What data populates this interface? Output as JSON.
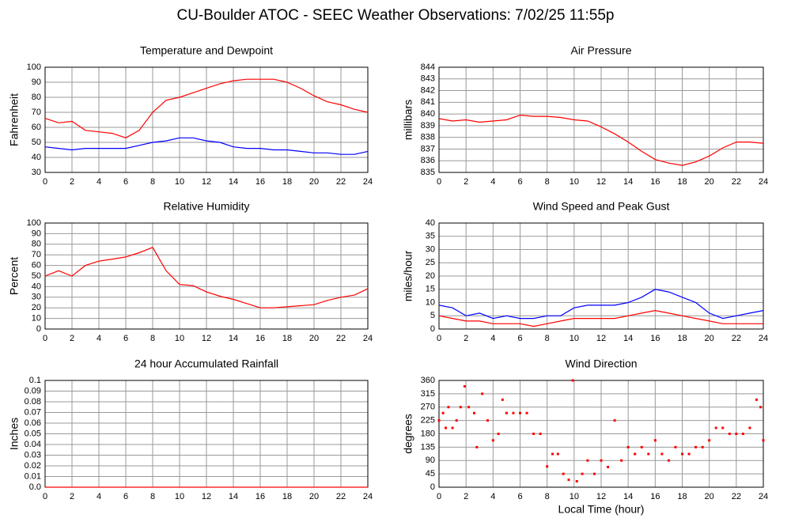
{
  "title": "CU-Boulder ATOC - SEEC Weather Observations: 7/02/25 11:55p",
  "chart_data": [
    {
      "type": "line",
      "title": "Temperature and Dewpoint",
      "ylabel": "Fahrenheit",
      "x": [
        0,
        1,
        2,
        3,
        4,
        5,
        6,
        7,
        8,
        9,
        10,
        11,
        12,
        13,
        14,
        15,
        16,
        17,
        18,
        19,
        20,
        21,
        22,
        23,
        24
      ],
      "series": [
        {
          "color": "#ff0000",
          "values": [
            66,
            63,
            64,
            58,
            57,
            56,
            53,
            58,
            70,
            78,
            80,
            83,
            86,
            89,
            91,
            92,
            92,
            92,
            90,
            86,
            81,
            77,
            75,
            72,
            70
          ]
        },
        {
          "color": "#0000ff",
          "values": [
            47,
            46,
            45,
            46,
            46,
            46,
            46,
            48,
            50,
            51,
            53,
            53,
            51,
            50,
            47,
            46,
            46,
            45,
            45,
            44,
            43,
            43,
            42,
            42,
            44
          ]
        }
      ],
      "xlim": [
        0,
        24
      ],
      "xticks": [
        0,
        2,
        4,
        6,
        8,
        10,
        12,
        14,
        16,
        18,
        20,
        22,
        24
      ],
      "ylim": [
        30,
        100
      ],
      "yticks": [
        30,
        40,
        50,
        60,
        70,
        80,
        90,
        100
      ],
      "grid": true
    },
    {
      "type": "line",
      "title": "Air Pressure",
      "ylabel": "millibars",
      "x": [
        0,
        1,
        2,
        3,
        4,
        5,
        6,
        7,
        8,
        9,
        10,
        11,
        12,
        13,
        14,
        15,
        16,
        17,
        18,
        19,
        20,
        21,
        22,
        23,
        24
      ],
      "series": [
        {
          "color": "#ff0000",
          "values": [
            839.6,
            839.4,
            839.5,
            839.3,
            839.4,
            839.5,
            839.9,
            839.8,
            839.8,
            839.7,
            839.5,
            839.4,
            838.9,
            838.3,
            837.6,
            836.8,
            836.1,
            835.8,
            835.6,
            835.9,
            836.4,
            837.1,
            837.6,
            837.6,
            837.5
          ]
        }
      ],
      "xlim": [
        0,
        24
      ],
      "xticks": [
        0,
        2,
        4,
        6,
        8,
        10,
        12,
        14,
        16,
        18,
        20,
        22,
        24
      ],
      "ylim": [
        835,
        844
      ],
      "yticks": [
        835,
        836,
        837,
        838,
        839,
        840,
        841,
        842,
        843,
        844
      ],
      "grid": true
    },
    {
      "type": "line",
      "title": "Relative Humidity",
      "ylabel": "Percent",
      "x": [
        0,
        1,
        2,
        3,
        4,
        5,
        6,
        7,
        8,
        9,
        10,
        11,
        12,
        13,
        14,
        15,
        16,
        17,
        18,
        19,
        20,
        21,
        22,
        23,
        24
      ],
      "series": [
        {
          "color": "#ff0000",
          "values": [
            50,
            55,
            50,
            60,
            64,
            66,
            68,
            72,
            77,
            55,
            42,
            41,
            35,
            31,
            28,
            24,
            20,
            20,
            21,
            22,
            23,
            27,
            30,
            32,
            38
          ]
        }
      ],
      "xlim": [
        0,
        24
      ],
      "xticks": [
        0,
        2,
        4,
        6,
        8,
        10,
        12,
        14,
        16,
        18,
        20,
        22,
        24
      ],
      "ylim": [
        0,
        100
      ],
      "yticks": [
        0,
        10,
        20,
        30,
        40,
        50,
        60,
        70,
        80,
        90,
        100
      ],
      "grid": true
    },
    {
      "type": "line",
      "title": "Wind Speed and Peak Gust",
      "ylabel": "miles/hour",
      "x": [
        0,
        1,
        2,
        3,
        4,
        5,
        6,
        7,
        8,
        9,
        10,
        11,
        12,
        13,
        14,
        15,
        16,
        17,
        18,
        19,
        20,
        21,
        22,
        23,
        24
      ],
      "series": [
        {
          "color": "#ff0000",
          "values": [
            5,
            4,
            3,
            3,
            2,
            2,
            2,
            1,
            2,
            3,
            4,
            4,
            4,
            4,
            5,
            6,
            7,
            6,
            5,
            4,
            3,
            2,
            2,
            2,
            2
          ]
        },
        {
          "color": "#0000ff",
          "values": [
            9,
            8,
            5,
            6,
            4,
            5,
            4,
            4,
            5,
            5,
            8,
            9,
            9,
            9,
            10,
            12,
            15,
            14,
            12,
            10,
            6,
            4,
            5,
            6,
            7
          ]
        }
      ],
      "xlim": [
        0,
        24
      ],
      "xticks": [
        0,
        2,
        4,
        6,
        8,
        10,
        12,
        14,
        16,
        18,
        20,
        22,
        24
      ],
      "ylim": [
        0,
        40
      ],
      "yticks": [
        0,
        5,
        10,
        15,
        20,
        25,
        30,
        35,
        40
      ],
      "grid": true
    },
    {
      "type": "line",
      "title": "24 hour Accumulated Rainfall",
      "ylabel": "Inches",
      "x": [
        0,
        1,
        2,
        3,
        4,
        5,
        6,
        7,
        8,
        9,
        10,
        11,
        12,
        13,
        14,
        15,
        16,
        17,
        18,
        19,
        20,
        21,
        22,
        23,
        24
      ],
      "series": [
        {
          "color": "#ff0000",
          "values": [
            0,
            0,
            0,
            0,
            0,
            0,
            0,
            0,
            0,
            0,
            0,
            0,
            0,
            0,
            0,
            0,
            0,
            0,
            0,
            0,
            0,
            0,
            0,
            0,
            0
          ]
        }
      ],
      "xlim": [
        0,
        24
      ],
      "xticks": [
        0,
        2,
        4,
        6,
        8,
        10,
        12,
        14,
        16,
        18,
        20,
        22,
        24
      ],
      "ylim": [
        0,
        0.1
      ],
      "yticks": [
        {
          "value": 0,
          "label": "0.0"
        },
        0.01,
        0.02,
        0.03,
        0.04,
        0.05,
        0.06,
        0.07,
        0.08,
        0.09,
        0.1
      ],
      "grid": true
    },
    {
      "type": "scatter",
      "title": "Wind Direction",
      "ylabel": "degrees",
      "xlabel": "Local Time (hour)",
      "x": [
        0,
        0.3,
        0.5,
        0.7,
        1,
        1.3,
        1.6,
        1.9,
        2.2,
        2.6,
        2.8,
        3.2,
        3.6,
        4,
        4.4,
        4.7,
        5,
        5.5,
        6,
        6.5,
        7,
        7.5,
        8,
        8.4,
        8.8,
        9.2,
        9.6,
        9.9,
        10.2,
        10.6,
        11,
        11.5,
        12,
        12.5,
        13,
        13.5,
        14,
        14.5,
        15,
        15.5,
        16,
        16.5,
        17,
        17.5,
        18,
        18.5,
        19,
        19.5,
        20,
        20.5,
        21,
        21.5,
        22,
        22.5,
        23,
        23.5,
        23.8,
        24
      ],
      "series": [
        {
          "color": "#ff0000",
          "values": [
            225,
            250,
            200,
            270,
            200,
            225,
            270,
            340,
            270,
            250,
            135,
            315,
            225,
            158,
            180,
            295,
            250,
            250,
            250,
            250,
            180,
            180,
            70,
            112,
            112,
            45,
            25,
            360,
            20,
            45,
            90,
            45,
            90,
            68,
            225,
            90,
            135,
            112,
            135,
            112,
            158,
            112,
            90,
            135,
            112,
            112,
            135,
            135,
            158,
            200,
            200,
            180,
            180,
            180,
            200,
            295,
            270,
            158
          ]
        }
      ],
      "xlim": [
        0,
        24
      ],
      "xticks": [
        0,
        2,
        4,
        6,
        8,
        10,
        12,
        14,
        16,
        18,
        20,
        22,
        24
      ],
      "ylim": [
        0,
        360
      ],
      "yticks": [
        0,
        45,
        90,
        135,
        180,
        225,
        270,
        315,
        360
      ],
      "grid": true
    }
  ]
}
